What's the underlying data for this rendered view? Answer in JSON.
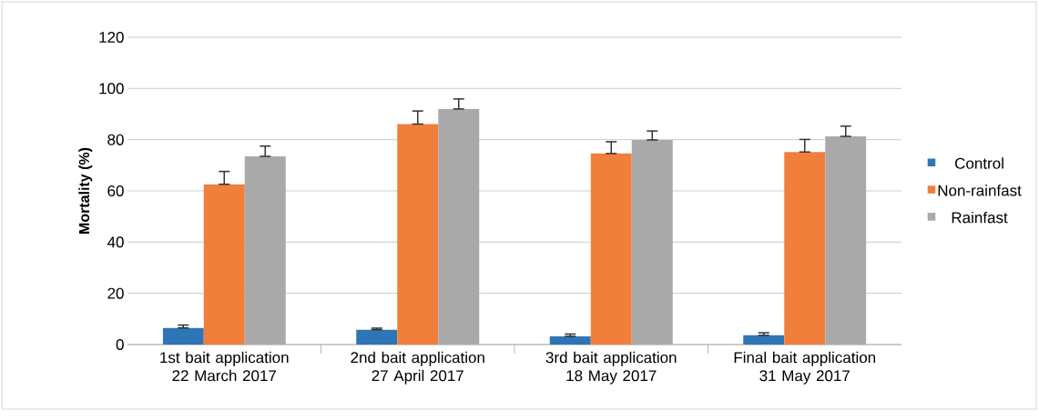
{
  "chart_data": {
    "type": "bar",
    "ylabel": "Mortality (%)",
    "categories": [
      "1st bait application 22 March 2017",
      "2nd bait application 27 April 2017",
      "3rd bait application 18 May 2017",
      "Final bait application 31 May 2017"
    ],
    "series": [
      {
        "name": "Control",
        "color": "#2e75b6",
        "values": [
          6.5,
          5.8,
          3.2,
          3.6
        ],
        "errors": [
          [
            6.5,
            7.6
          ],
          [
            5.8,
            6.4
          ],
          [
            3.2,
            4.1
          ],
          [
            3.6,
            4.6
          ]
        ]
      },
      {
        "name": "Non-rainfast",
        "color": "#f07f3c",
        "values": [
          62.6,
          86.1,
          74.6,
          75.2
        ],
        "errors": [
          [
            62.6,
            67.6
          ],
          [
            86.1,
            91.2
          ],
          [
            74.6,
            79.2
          ],
          [
            75.2,
            80.1
          ]
        ]
      },
      {
        "name": "Rainfast",
        "color": "#a9a9a9",
        "values": [
          73.5,
          92.0,
          79.9,
          81.3
        ],
        "errors": [
          [
            73.5,
            77.5
          ],
          [
            92.0,
            95.9
          ],
          [
            79.9,
            83.4
          ],
          [
            81.3,
            85.3
          ]
        ]
      }
    ],
    "ylim": [
      0,
      120
    ],
    "yticks": [
      0,
      20,
      40,
      60,
      80,
      100,
      120
    ],
    "grid": "y",
    "legend": "right"
  }
}
